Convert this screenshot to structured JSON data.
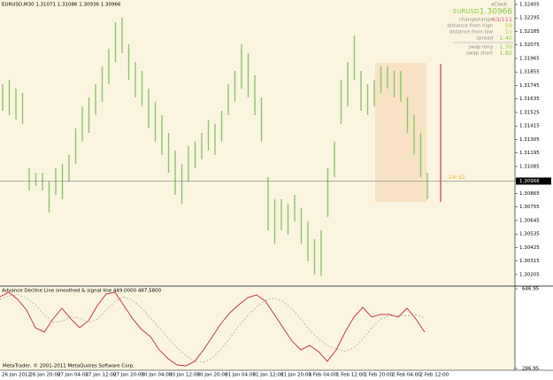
{
  "chart_data": [
    {
      "type": "hlbar",
      "title": "EURUSD,M30 1.31071 1.31086 1.30936 1.30966",
      "color": "#8ac46a",
      "high": [
        1.31756,
        1.31792,
        1.3172,
        1.31684,
        1.31071,
        1.31034,
        1.31034,
        1.30962,
        1.31071,
        1.31107,
        1.31179,
        1.31395,
        1.31575,
        1.31648,
        1.31756,
        1.319,
        1.32044,
        1.32261,
        1.32297,
        1.3208,
        1.31936,
        1.31864,
        1.3172,
        1.31612,
        1.31503,
        1.31359,
        1.31215,
        1.31107,
        1.31251,
        1.31287,
        1.31359,
        1.31467,
        1.31431,
        1.31539,
        1.31756,
        1.31864,
        1.3208,
        1.32008,
        1.31828,
        1.31648,
        1.30998,
        1.30818,
        1.30818,
        1.30782,
        1.30854,
        1.30746,
        1.30638,
        1.30493,
        1.30566,
        1.31071,
        1.31287,
        1.31792,
        1.31936,
        1.32152,
        1.31864,
        1.31756,
        1.31792,
        1.319,
        1.319,
        1.31864,
        1.31864,
        1.31648,
        1.31503,
        1.31359,
        1.31034
      ],
      "low": [
        1.31539,
        1.31503,
        1.31467,
        1.31431,
        1.3089,
        1.30926,
        1.3089,
        1.3071,
        1.30854,
        1.30818,
        1.30962,
        1.31107,
        1.31287,
        1.31359,
        1.31503,
        1.31612,
        1.31756,
        1.31936,
        1.32008,
        1.31792,
        1.31648,
        1.31575,
        1.31395,
        1.31287,
        1.31179,
        1.31034,
        1.30854,
        1.30782,
        1.30962,
        1.31071,
        1.31143,
        1.31215,
        1.31179,
        1.31287,
        1.31503,
        1.31612,
        1.3172,
        1.31648,
        1.31503,
        1.31287,
        1.30566,
        1.30457,
        1.30566,
        1.3053,
        1.30638,
        1.30457,
        1.30313,
        1.30205,
        1.30191,
        1.30674,
        1.30998,
        1.31431,
        1.31575,
        1.31792,
        1.31539,
        1.31503,
        1.31575,
        1.31684,
        1.3172,
        1.31648,
        1.31612,
        1.31359,
        1.31179,
        1.30998,
        1.30818
      ],
      "ylim": [
        1.30118,
        1.32441
      ],
      "yticks": [
        1.30205,
        1.30315,
        1.30425,
        1.30535,
        1.30645,
        1.30755,
        1.30865,
        1.30975,
        1.31085,
        1.31195,
        1.31305,
        1.31415,
        1.31525,
        1.31635,
        1.31745,
        1.31855,
        1.31965,
        1.32075,
        1.32185,
        1.32295,
        1.32405
      ],
      "current_price": 1.30966,
      "time_labels": [
        "26 Jan 2012",
        "26 Jan 20:00",
        "27 Jan 04:00",
        "27 Jan 12:00",
        "27 Jan 20:00",
        "30 Jan 04:00",
        "30 Jan 12:00",
        "30 Jan 20:00",
        "31 Jan 04:00",
        "31 Jan 12:00",
        "31 Jan 20:00",
        "1 Feb 04:00",
        "1 Feb 12:00",
        "1 Feb 20:00",
        "2 Feb 04:00",
        "2 Feb 12:00"
      ]
    },
    {
      "type": "line",
      "title": "Advance Decline Line  smoothed & signal line 449.0000 487.5800",
      "ylim": [
        278.95,
        658.95
      ],
      "yticks": [
        646.95,
        286.95
      ],
      "series": [
        {
          "color": "#c8364e",
          "values": [
            611,
            631,
            599,
            551,
            471,
            451,
            511,
            559,
            511,
            471,
            503,
            571,
            623,
            631,
            571,
            511,
            463,
            431,
            371,
            331,
            303,
            299,
            319,
            371,
            431,
            491,
            539,
            575,
            607,
            619,
            591,
            531,
            471,
            411,
            371,
            391,
            363,
            319,
            371,
            451,
            519,
            563,
            519,
            531,
            531,
            519,
            559,
            511,
            451
          ]
        },
        {
          "color": "#9a9a9a",
          "dash": "2,2",
          "values": [
            600,
            615,
            620,
            605,
            575,
            530,
            495,
            500,
            520,
            515,
            495,
            510,
            550,
            590,
            610,
            595,
            560,
            515,
            470,
            425,
            380,
            345,
            320,
            315,
            335,
            375,
            425,
            480,
            525,
            565,
            595,
            605,
            590,
            555,
            510,
            460,
            420,
            390,
            375,
            365,
            380,
            420,
            470,
            510,
            525,
            525,
            525,
            530,
            515
          ]
        }
      ]
    }
  ],
  "info_panel": {
    "clock": "xClock",
    "symbol": "EURUSD",
    "price": "1.30966",
    "rows": [
      {
        "label": "change/range",
        "value": "63/111"
      },
      {
        "label": "distance from high",
        "value": "59"
      },
      {
        "label": "distance from low",
        "value": "11"
      },
      {
        "label": "spread",
        "value": "1.40"
      },
      {
        "label": "swap long",
        "value": "1.70"
      },
      {
        "label": "swap short",
        "value": "1.80"
      }
    ]
  },
  "timer": "24:32",
  "copyright": "MetaTrader, © 2001-2011 MetaQuotes Software Corp."
}
